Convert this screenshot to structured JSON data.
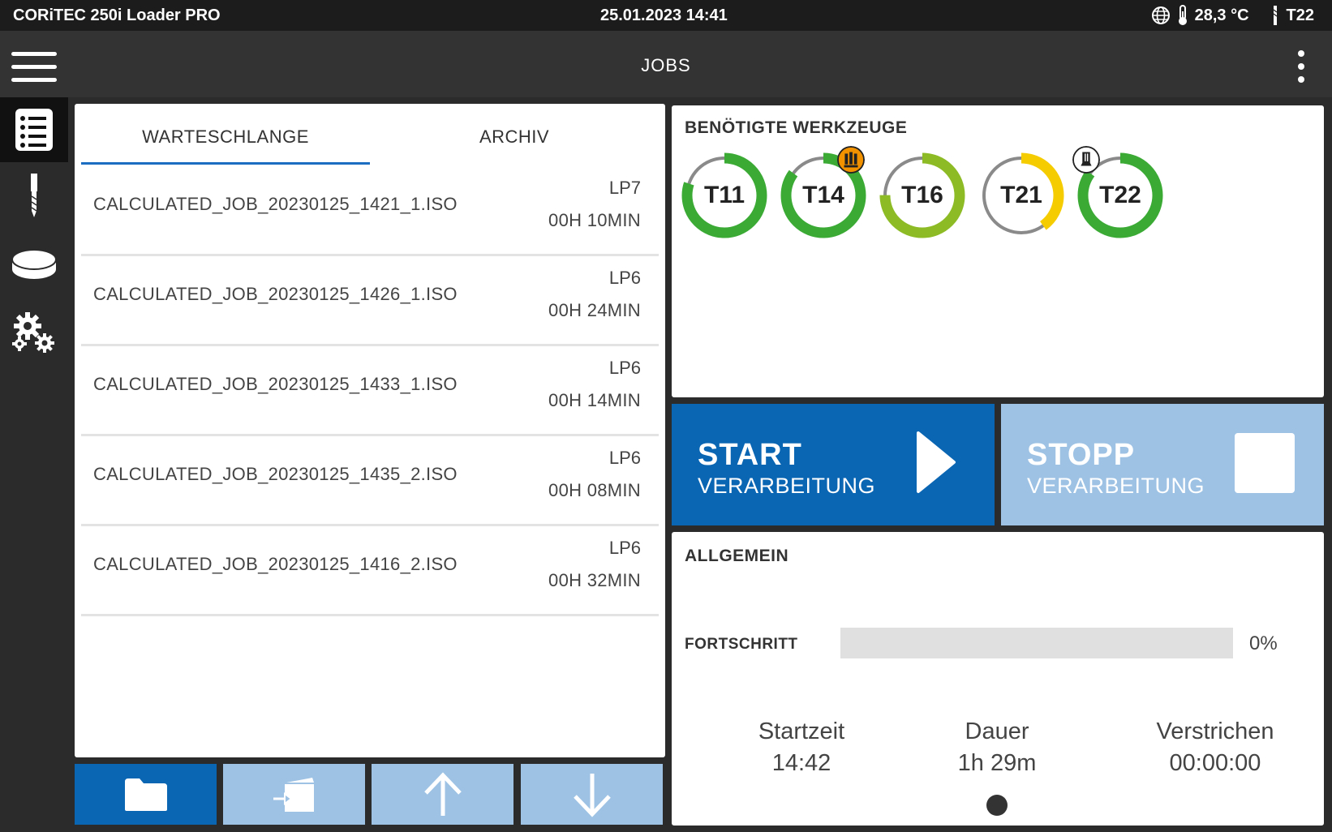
{
  "statusbar": {
    "app_name": "CORiTEC 250i Loader PRO",
    "datetime": "25.01.2023 14:41",
    "temperature": "28,3 °C",
    "tool": "T22",
    "icons": [
      "globe-icon",
      "thermometer-icon",
      "tool-bit-icon"
    ]
  },
  "header": {
    "title": "JOBS"
  },
  "sidenav": {
    "items": [
      "job-list-icon",
      "tool-icon",
      "disc-icon",
      "settings-icon"
    ],
    "active": 0
  },
  "queue": {
    "tabs": [
      {
        "label": "WARTESCHLANGE",
        "active": true
      },
      {
        "label": "ARCHIV",
        "active": false
      }
    ],
    "jobs": [
      {
        "name": "CALCULATED_JOB_20230125_1421_1.ISO",
        "lp": "LP7",
        "duration": "00H 10MIN"
      },
      {
        "name": "CALCULATED_JOB_20230125_1426_1.ISO",
        "lp": "LP6",
        "duration": "00H 24MIN"
      },
      {
        "name": "CALCULATED_JOB_20230125_1433_1.ISO",
        "lp": "LP6",
        "duration": "00H 14MIN"
      },
      {
        "name": "CALCULATED_JOB_20230125_1435_2.ISO",
        "lp": "LP6",
        "duration": "00H 08MIN"
      },
      {
        "name": "CALCULATED_JOB_20230125_1416_2.ISO",
        "lp": "LP6",
        "duration": "00H 32MIN"
      }
    ],
    "toolbar": [
      "folder-icon",
      "load-job-icon",
      "arrow-up-icon",
      "arrow-down-icon"
    ]
  },
  "tools": {
    "title": "BENÖTIGTE WERKZEUGE",
    "items": [
      {
        "label": "T11",
        "color": "#3aaa35",
        "fraction": 0.8
      },
      {
        "label": "T14",
        "color": "#3aaa35",
        "fraction": 0.85,
        "badge": "warning-icon"
      },
      {
        "label": "T16",
        "color": "#8dbb25",
        "fraction": 0.75
      },
      {
        "label": "T21",
        "color": "#f5cc00",
        "fraction": 0.4
      },
      {
        "label": "T22",
        "color": "#3aaa35",
        "fraction": 0.85,
        "badge": "active-tool-icon"
      }
    ]
  },
  "start_button": {
    "title": "START",
    "subtitle": "VERARBEITUNG"
  },
  "stop_button": {
    "title": "STOPP",
    "subtitle": "VERARBEITUNG"
  },
  "general": {
    "title": "ALLGEMEIN",
    "progress_label": "FORTSCHRITT",
    "progress_fraction": 0,
    "progress_text": "0%",
    "stats": [
      {
        "label": "Startzeit",
        "value": "14:42"
      },
      {
        "label": "Dauer",
        "value": "1h 29m"
      },
      {
        "label": "Verstrichen",
        "value": "00:00:00"
      }
    ]
  }
}
